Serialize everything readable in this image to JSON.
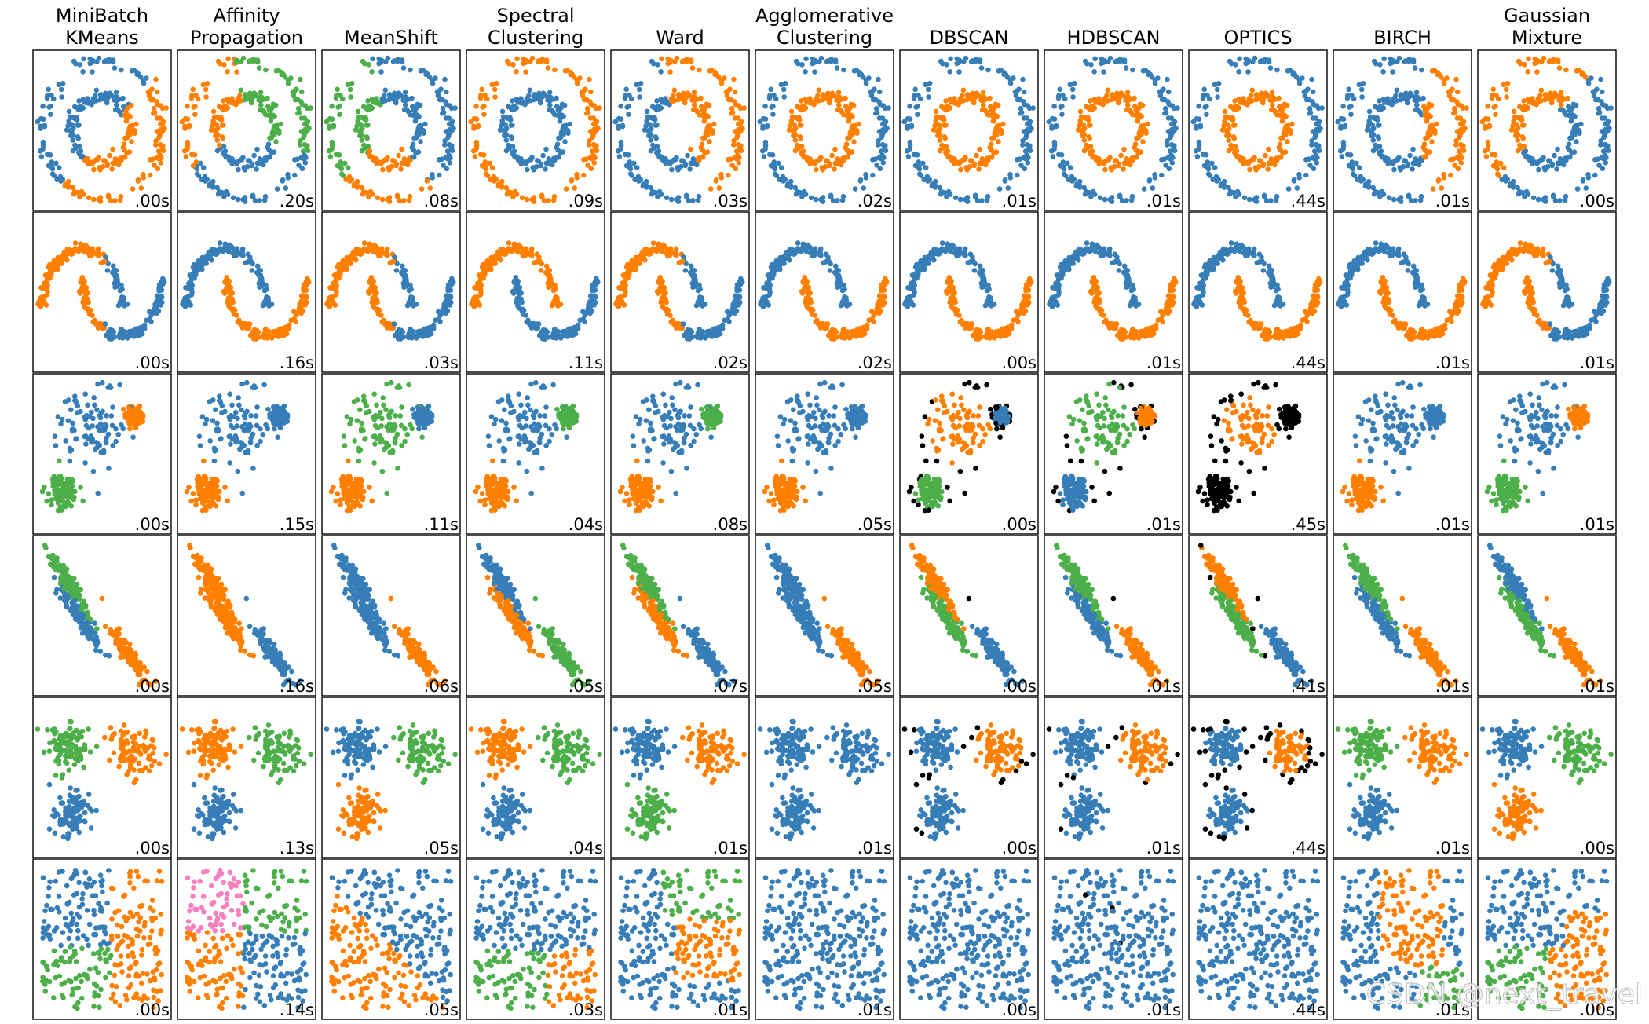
{
  "columns": [
    {
      "title": [
        "MiniBatch",
        "KMeans"
      ]
    },
    {
      "title": [
        "Affinity",
        "Propagation"
      ]
    },
    {
      "title": [
        "MeanShift"
      ]
    },
    {
      "title": [
        "Spectral",
        "Clustering"
      ]
    },
    {
      "title": [
        "Ward"
      ]
    },
    {
      "title": [
        "Agglomerative",
        "Clustering"
      ]
    },
    {
      "title": [
        "DBSCAN"
      ]
    },
    {
      "title": [
        "HDBSCAN"
      ]
    },
    {
      "title": [
        "OPTICS"
      ]
    },
    {
      "title": [
        "BIRCH"
      ]
    },
    {
      "title": [
        "Gaussian",
        "Mixture"
      ]
    }
  ],
  "times": [
    [
      ".00s",
      ".20s",
      ".08s",
      ".09s",
      ".03s",
      ".02s",
      ".01s",
      ".01s",
      ".44s",
      ".01s",
      ".00s"
    ],
    [
      ".00s",
      ".16s",
      ".03s",
      ".11s",
      ".02s",
      ".02s",
      ".00s",
      ".01s",
      ".44s",
      ".01s",
      ".01s"
    ],
    [
      ".00s",
      ".15s",
      ".11s",
      ".04s",
      ".08s",
      ".05s",
      ".00s",
      ".01s",
      ".45s",
      ".01s",
      ".01s"
    ],
    [
      ".00s",
      ".16s",
      ".06s",
      ".05s",
      ".07s",
      ".05s",
      ".00s",
      ".01s",
      ".41s",
      ".01s",
      ".01s"
    ],
    [
      ".00s",
      ".13s",
      ".05s",
      ".04s",
      ".01s",
      ".01s",
      ".00s",
      ".01s",
      ".44s",
      ".01s",
      ".00s"
    ],
    [
      ".00s",
      ".14s",
      ".05s",
      ".03s",
      ".01s",
      ".01s",
      ".00s",
      ".01s",
      ".44s",
      ".01s",
      ".00s"
    ]
  ],
  "palette": {
    "b": "#377eb8",
    "o": "#ff7f00",
    "g": "#4daf4a",
    "p": "#f781bf",
    "k": "#000000"
  },
  "watermark": "CSDN @next_travel"
}
